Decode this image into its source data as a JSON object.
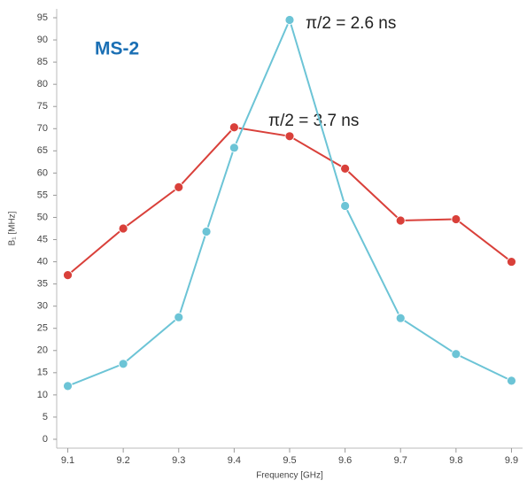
{
  "chart_data": {
    "type": "line",
    "title": "MS-2",
    "xlabel": "Frequency [GHz]",
    "ylabel": "B₁ [MHz]",
    "annotations": [
      "π/2 = 2.6 ns",
      "π/2 = 3.7 ns"
    ],
    "xlim": [
      9.08,
      9.92
    ],
    "xticks": [
      9.1,
      9.2,
      9.3,
      9.4,
      9.5,
      9.6,
      9.7,
      9.8,
      9.9
    ],
    "ylim": [
      -2,
      97
    ],
    "yticks": [
      0,
      5,
      10,
      15,
      20,
      25,
      30,
      35,
      40,
      45,
      50,
      55,
      60,
      65,
      70,
      75,
      80,
      85,
      90,
      95
    ],
    "series": [
      {
        "color": "#d9403a",
        "x": [
          9.1,
          9.2,
          9.3,
          9.4,
          9.5,
          9.6,
          9.7,
          9.8,
          9.9
        ],
        "values": [
          37,
          47.5,
          56.8,
          70.3,
          68.3,
          61,
          49.3,
          49.6,
          40
        ]
      },
      {
        "color": "#6cc4d6",
        "x": [
          9.1,
          9.2,
          9.3,
          9.35,
          9.4,
          9.5,
          9.6,
          9.7,
          9.8,
          9.9
        ],
        "values": [
          12,
          17,
          27.5,
          46.8,
          65.7,
          94.5,
          52.6,
          27.3,
          19.2,
          13.2
        ]
      }
    ]
  }
}
